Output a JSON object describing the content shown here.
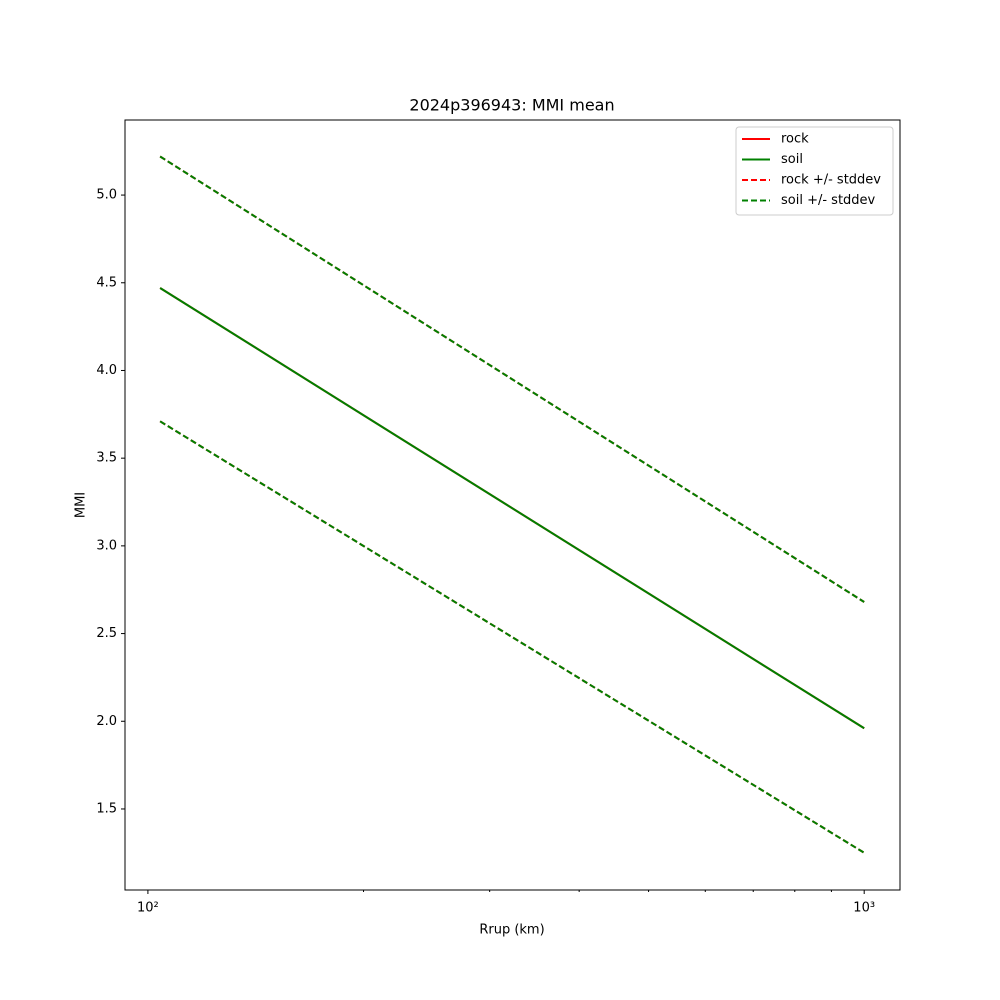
{
  "chart_data": {
    "type": "line",
    "title": "2024p396943: MMI mean",
    "x_label": "Rrup (km)",
    "y_label": "MMI",
    "x_scale": "log",
    "xlim": [
      92.9,
      1122
    ],
    "ylim": [
      1.038,
      5.428
    ],
    "xticks": [
      {
        "value": 100,
        "label": "10²"
      },
      {
        "value": 1000,
        "label": "10³"
      }
    ],
    "xminorticks": [
      200,
      300,
      400,
      500,
      600,
      700,
      800,
      900
    ],
    "yticks": [
      {
        "value": 1.5,
        "label": "1.5"
      },
      {
        "value": 2.0,
        "label": "2.0"
      },
      {
        "value": 2.5,
        "label": "2.5"
      },
      {
        "value": 3.0,
        "label": "3.0"
      },
      {
        "value": 3.5,
        "label": "3.5"
      },
      {
        "value": 4.0,
        "label": "4.0"
      },
      {
        "value": 4.5,
        "label": "4.5"
      },
      {
        "value": 5.0,
        "label": "5.0"
      }
    ],
    "legend": "upper right",
    "x": [
      104,
      1000
    ],
    "series": [
      {
        "name": "rock",
        "color": "#ff0000",
        "style": "solid",
        "values": [
          4.47,
          1.96
        ]
      },
      {
        "name": "soil",
        "color": "#008000",
        "style": "solid",
        "values": [
          4.47,
          1.96
        ]
      },
      {
        "name": "rock +/- stddev",
        "color": "#ff0000",
        "style": "dashed",
        "upper": [
          5.22,
          2.68
        ],
        "lower": [
          3.71,
          1.25
        ]
      },
      {
        "name": "soil +/- stddev",
        "color": "#008000",
        "style": "dashed",
        "upper": [
          5.22,
          2.68
        ],
        "lower": [
          3.71,
          1.25
        ]
      }
    ]
  }
}
